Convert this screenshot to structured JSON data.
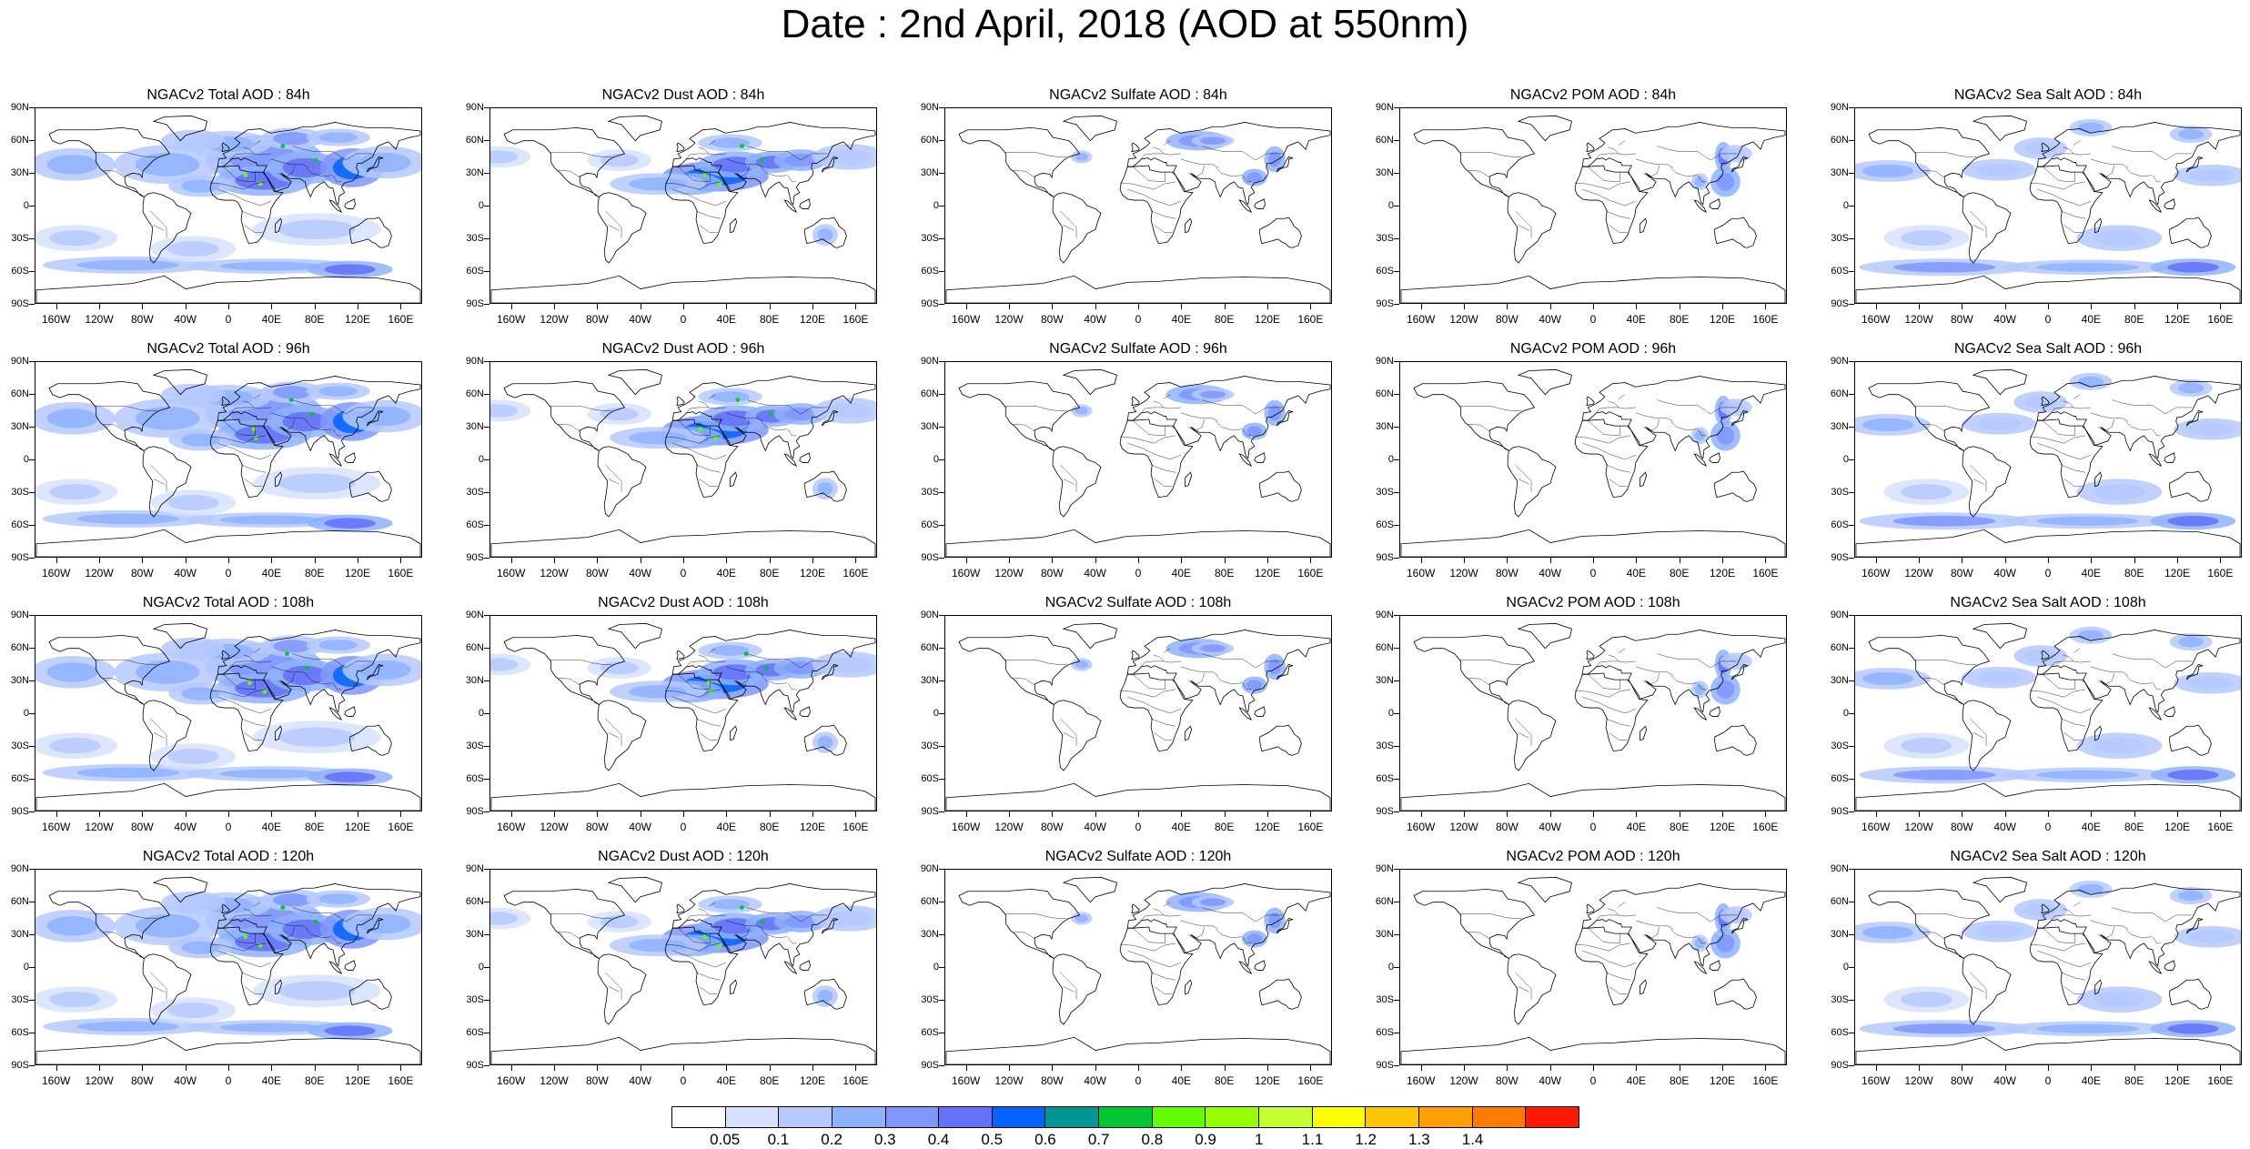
{
  "title": "Date : 2nd April, 2018 (AOD at 550nm)",
  "lat_labels": [
    "90N",
    "60N",
    "30N",
    "0",
    "30S",
    "60S",
    "90S"
  ],
  "lon_labels": [
    "160W",
    "120W",
    "80W",
    "40W",
    "0",
    "40E",
    "80E",
    "120E",
    "160E"
  ],
  "panels": [
    {
      "title": "NGACv2 Total AOD : 84h",
      "species": "total"
    },
    {
      "title": "NGACv2 Dust AOD : 84h",
      "species": "dust"
    },
    {
      "title": "NGACv2 Sulfate AOD : 84h",
      "species": "sulfate"
    },
    {
      "title": "NGACv2 POM AOD : 84h",
      "species": "pom"
    },
    {
      "title": "NGACv2 Sea Salt AOD : 84h",
      "species": "seasalt"
    },
    {
      "title": "NGACv2 Total AOD : 96h",
      "species": "total"
    },
    {
      "title": "NGACv2 Dust AOD : 96h",
      "species": "dust"
    },
    {
      "title": "NGACv2 Sulfate AOD : 96h",
      "species": "sulfate"
    },
    {
      "title": "NGACv2 POM AOD : 96h",
      "species": "pom"
    },
    {
      "title": "NGACv2 Sea Salt AOD : 96h",
      "species": "seasalt"
    },
    {
      "title": "NGACv2 Total AOD : 108h",
      "species": "total"
    },
    {
      "title": "NGACv2 Dust AOD : 108h",
      "species": "dust"
    },
    {
      "title": "NGACv2 Sulfate AOD : 108h",
      "species": "sulfate"
    },
    {
      "title": "NGACv2 POM AOD : 108h",
      "species": "pom"
    },
    {
      "title": "NGACv2 Sea Salt AOD : 108h",
      "species": "seasalt"
    },
    {
      "title": "NGACv2 Total AOD : 120h",
      "species": "total"
    },
    {
      "title": "NGACv2 Dust AOD : 120h",
      "species": "dust"
    },
    {
      "title": "NGACv2 Sulfate AOD : 120h",
      "species": "sulfate"
    },
    {
      "title": "NGACv2 POM AOD : 120h",
      "species": "pom"
    },
    {
      "title": "NGACv2 Sea Salt  AOD : 120h",
      "species": "seasalt"
    }
  ],
  "colorbar": {
    "colors": [
      "#ffffff",
      "#d6e2ff",
      "#b5c9ff",
      "#8eb2ff",
      "#7f96ff",
      "#6370f8",
      "#0063ff",
      "#009696",
      "#00c633",
      "#63ff00",
      "#96ff00",
      "#c6ff33",
      "#ffff00",
      "#ffc600",
      "#ffa000",
      "#ff7c00",
      "#ff1900"
    ],
    "labels": [
      "0.05",
      "0.1",
      "0.2",
      "0.3",
      "0.4",
      "0.5",
      "0.6",
      "0.7",
      "0.8",
      "0.9",
      "1",
      "1.1",
      "1.2",
      "1.3",
      "1.4"
    ]
  }
}
